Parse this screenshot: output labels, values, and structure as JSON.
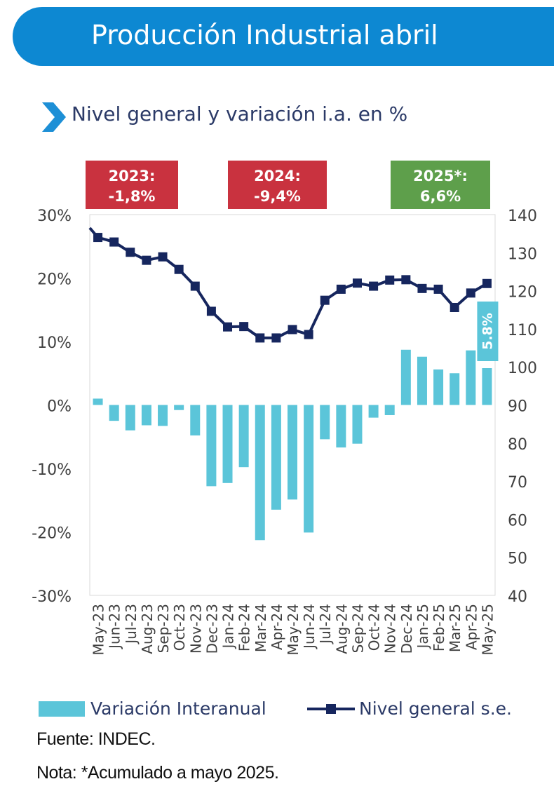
{
  "header": {
    "title": "Producción Industrial abril"
  },
  "subtitle": "Nivel general y variación i.a. en %",
  "badges": [
    {
      "line1": "2023:",
      "line2": "-1,8%",
      "color": "#c9323f"
    },
    {
      "line1": "2024:",
      "line2": "-9,4%",
      "color": "#c9323f"
    },
    {
      "line1": "2025*:",
      "line2": "6,6%",
      "color": "#5e9f4b"
    }
  ],
  "chart_data": {
    "type": "bar+line",
    "categories": [
      "May-23",
      "Jun-23",
      "Jul-23",
      "Aug-23",
      "Sep-23",
      "Oct-23",
      "Nov-23",
      "Dec-23",
      "Jan-24",
      "Feb-24",
      "Mar-24",
      "Apr-24",
      "May-24",
      "Jun-24",
      "Jul-24",
      "Aug-24",
      "Sep-24",
      "Oct-24",
      "Nov-24",
      "Dec-24",
      "Jan-25",
      "Feb-25",
      "Mar-25",
      "Apr-25",
      "May-25"
    ],
    "series": [
      {
        "name": "Variación Interanual",
        "type": "bar",
        "axis": "left",
        "color": "#5bc5d9",
        "values": [
          1.0,
          -2.5,
          -4.0,
          -3.2,
          -3.3,
          -0.8,
          -4.8,
          -12.8,
          -12.3,
          -9.8,
          -21.3,
          -16.5,
          -14.9,
          -20.1,
          -5.4,
          -6.7,
          -6.1,
          -2.0,
          -1.6,
          8.7,
          7.6,
          5.6,
          5.0,
          8.6,
          5.8
        ]
      },
      {
        "name": "Nivel general s.e.",
        "type": "line",
        "axis": "right",
        "color": "#16265e",
        "values": [
          134.0,
          132.8,
          130.1,
          128.0,
          128.9,
          125.6,
          121.2,
          114.6,
          110.5,
          110.6,
          107.6,
          107.6,
          109.8,
          108.5,
          117.5,
          120.4,
          122.0,
          121.2,
          122.8,
          122.9,
          120.6,
          120.4,
          115.6,
          119.4,
          121.9
        ]
      }
    ],
    "line_start_value": 136.5,
    "data_labels": [
      {
        "series": "Variación Interanual",
        "category": "May-25",
        "text": "5.8%"
      }
    ],
    "y_left": {
      "min": -30,
      "max": 30,
      "step": 10,
      "ticks": [
        "-30%",
        "-20%",
        "-10%",
        "0%",
        "10%",
        "20%",
        "30%"
      ]
    },
    "y_right": {
      "min": 40,
      "max": 140,
      "step": 10,
      "ticks": [
        "40",
        "50",
        "60",
        "70",
        "80",
        "90",
        "100",
        "110",
        "120",
        "130",
        "140"
      ]
    },
    "grid": false,
    "legend_position": "bottom"
  },
  "legend": {
    "bar_label": "Variación Interanual",
    "line_label": "Nivel general s.e."
  },
  "source": "Fuente: INDEC.",
  "note": "Nota: *Acumulado a mayo  2025."
}
